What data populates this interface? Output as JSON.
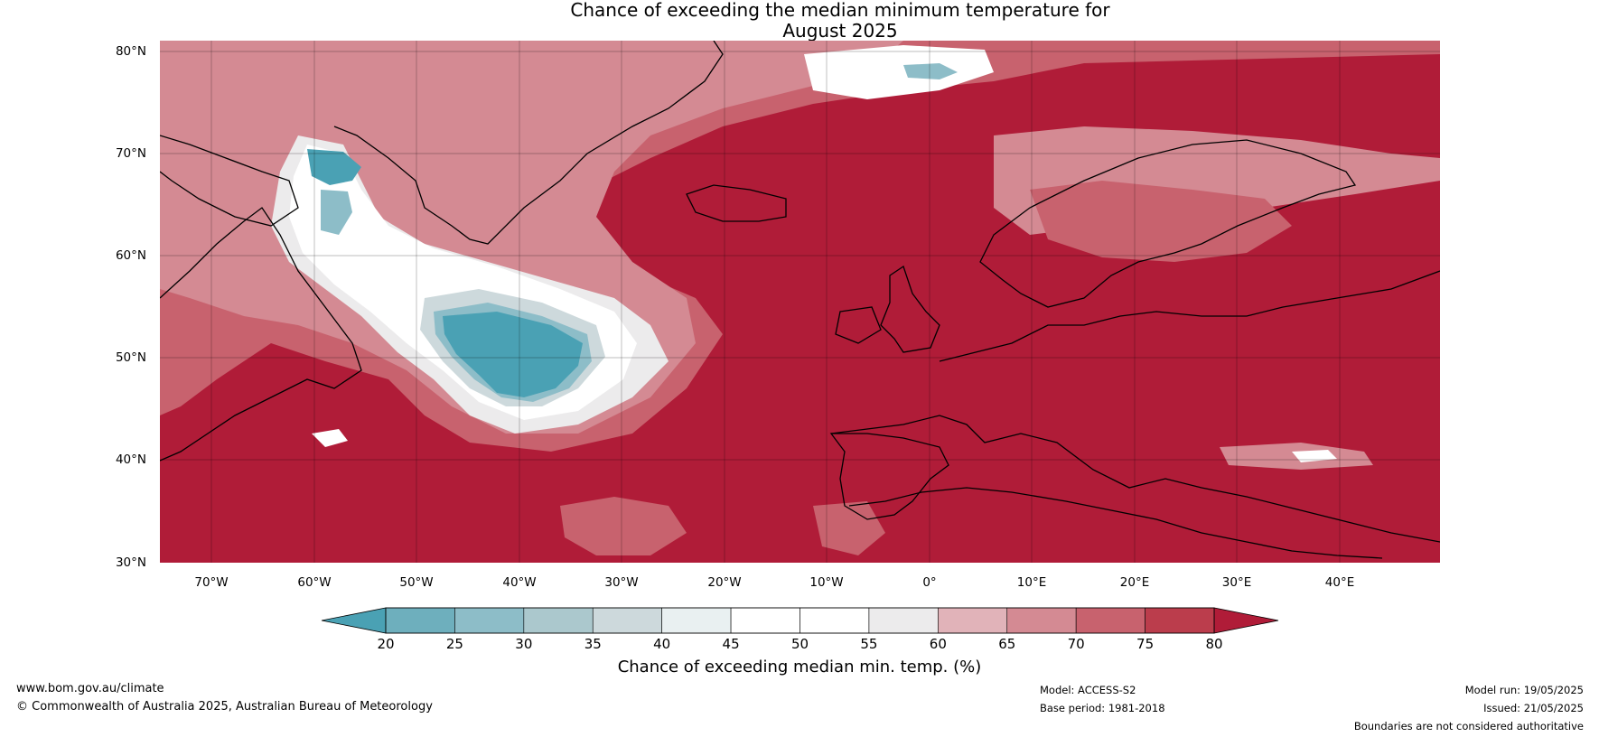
{
  "title": {
    "line1": "Chance of exceeding the median minimum temperature for",
    "line2": "August 2025"
  },
  "map": {
    "lat_labels": [
      "80°N",
      "70°N",
      "60°N",
      "50°N",
      "40°N",
      "30°N"
    ],
    "lon_labels": [
      "70°W",
      "60°W",
      "50°W",
      "40°W",
      "30°W",
      "20°W",
      "10°W",
      "0°",
      "10°E",
      "20°E",
      "30°E",
      "40°E"
    ],
    "extent": {
      "lon": [
        -75,
        50
      ],
      "lat": [
        30,
        81
      ]
    }
  },
  "colorbar": {
    "title": "Chance of exceeding median min. temp. (%)",
    "ticks": [
      "20",
      "25",
      "30",
      "35",
      "40",
      "45",
      "50",
      "55",
      "60",
      "65",
      "70",
      "75",
      "80"
    ],
    "colors": [
      "#4da3b5",
      "#6eafbd",
      "#8dbdc8",
      "#abc8cd",
      "#cdd9dc",
      "#e9f0f1",
      "#ffffff",
      "#ffffff",
      "#ecebec",
      "#e1b3b9",
      "#d48a93",
      "#c8626e",
      "#bb3d4c"
    ],
    "under_color": "#4aa1b4",
    "over_color": "#b01c38"
  },
  "footer": {
    "website": "www.bom.gov.au/climate",
    "copyright": "© Commonwealth of Australia 2025, Australian Bureau of Meteorology",
    "model": "Model: ACCESS-S2",
    "base_period": "Base period: 1981-2018",
    "model_run": "Model run: 19/05/2025",
    "issued": "Issued: 21/05/2025",
    "disclaimer": "Boundaries are not considered authoritative"
  },
  "colors": {
    "warm": "#b01c38",
    "cool": "#4aa1b4"
  }
}
